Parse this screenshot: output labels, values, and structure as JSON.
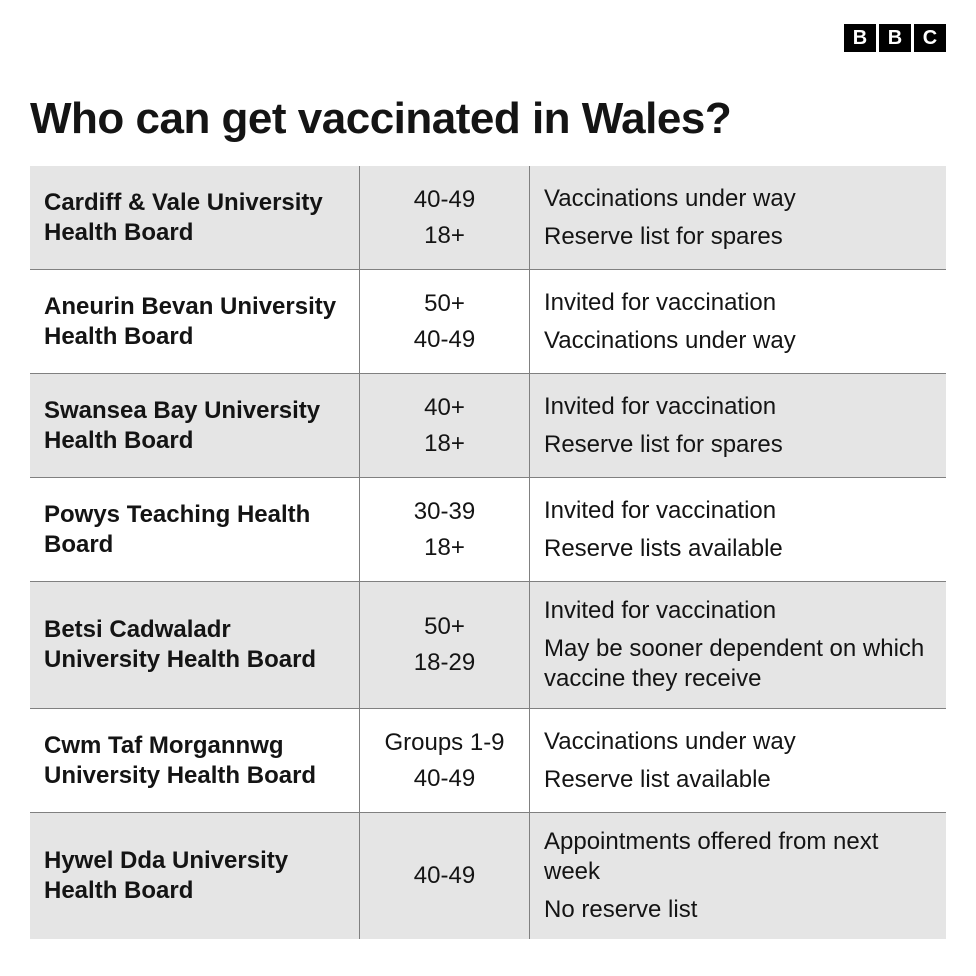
{
  "title": "Who can get vaccinated in Wales?",
  "logo": {
    "b1": "B",
    "b2": "B",
    "c": "C"
  },
  "colors": {
    "background": "#ffffff",
    "shaded": "#e5e5e5",
    "border": "#808080",
    "text": "#141414",
    "logo_bg": "#000000",
    "logo_fg": "#ffffff"
  },
  "table": {
    "rows": [
      {
        "shaded": true,
        "board": "Cardiff & Vale University Health Board",
        "ages": [
          "40-49",
          "18+"
        ],
        "statuses": [
          "Vaccinations under way",
          "Reserve list for spares"
        ]
      },
      {
        "shaded": false,
        "board": "Aneurin Bevan University Health Board",
        "ages": [
          "50+",
          "40-49"
        ],
        "statuses": [
          "Invited for vaccination",
          "Vaccinations under way"
        ]
      },
      {
        "shaded": true,
        "board": "Swansea Bay University Health Board",
        "ages": [
          "40+",
          "18+"
        ],
        "statuses": [
          "Invited for vaccination",
          "Reserve list for spares"
        ]
      },
      {
        "shaded": false,
        "board": "Powys Teaching Health Board",
        "ages": [
          "30-39",
          "18+"
        ],
        "statuses": [
          "Invited for vaccination",
          "Reserve lists available"
        ]
      },
      {
        "shaded": true,
        "board": "Betsi Cadwaladr University Health Board",
        "ages": [
          "50+",
          "18-29"
        ],
        "statuses": [
          "Invited for vaccination",
          "May be sooner dependent on which vaccine they receive"
        ]
      },
      {
        "shaded": false,
        "board": "Cwm Taf Morgannwg University Health Board",
        "ages": [
          "Groups 1-9",
          "40-49"
        ],
        "statuses": [
          "Vaccinations under way",
          "Reserve list available"
        ]
      },
      {
        "shaded": true,
        "board": "Hywel Dda University Health Board",
        "ages": [
          "40-49"
        ],
        "statuses": [
          "Appointments offered from next week",
          "No reserve list"
        ]
      }
    ]
  }
}
